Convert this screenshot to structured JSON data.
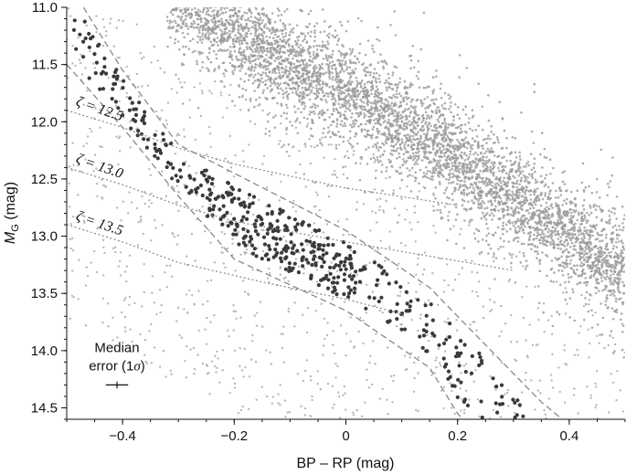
{
  "chart_data": {
    "type": "scatter",
    "title": "",
    "xlabel": "BP – RP (mag)",
    "ylabel_main": "M",
    "ylabel_sub": "G",
    "ylabel_unit": " (mag)",
    "xlim": [
      -0.5,
      0.5
    ],
    "ylim": [
      14.6,
      11.0
    ],
    "y_inverted": true,
    "x_ticks": [
      -0.4,
      -0.2,
      0,
      0.2,
      0.4
    ],
    "x_tick_labels": [
      "−0.4",
      "−0.2",
      "0",
      "0.2",
      "0.4"
    ],
    "y_ticks": [
      11.0,
      11.5,
      12.0,
      12.5,
      13.0,
      13.5,
      14.0,
      14.5
    ],
    "y_tick_labels": [
      "11.0",
      "11.5",
      "12.0",
      "12.5",
      "13.0",
      "13.5",
      "14.0",
      "14.5"
    ],
    "grid": false,
    "colors": {
      "background_stars": "#9a9a9a",
      "selected_stars": "#3a3a3a",
      "lines": "#888888"
    },
    "main_sequence_ridge": {
      "description": "dense band of background stars",
      "points": [
        [
          -0.27,
          11.0
        ],
        [
          -0.1,
          11.5
        ],
        [
          0.1,
          12.0
        ],
        [
          0.25,
          12.5
        ],
        [
          0.4,
          13.0
        ],
        [
          0.5,
          13.3
        ]
      ]
    },
    "selection_boundaries": [
      {
        "name": "upper",
        "points": [
          [
            -0.47,
            11.0
          ],
          [
            -0.4,
            11.55
          ],
          [
            -0.3,
            12.2
          ],
          [
            0.0,
            12.95
          ],
          [
            0.15,
            13.45
          ],
          [
            0.25,
            13.95
          ],
          [
            0.35,
            14.45
          ],
          [
            0.4,
            14.65
          ]
        ]
      },
      {
        "name": "lower",
        "points": [
          [
            -0.5,
            11.5
          ],
          [
            -0.4,
            12.05
          ],
          [
            -0.3,
            12.65
          ],
          [
            -0.2,
            13.2
          ],
          [
            0.0,
            13.65
          ],
          [
            0.15,
            14.15
          ],
          [
            0.2,
            14.55
          ],
          [
            0.22,
            14.65
          ]
        ]
      }
    ],
    "cooling_tracks": [
      {
        "label": "ζ = 12.5",
        "points": [
          [
            -0.5,
            11.9
          ],
          [
            -0.4,
            12.05
          ],
          [
            -0.3,
            12.23
          ],
          [
            -0.2,
            12.37
          ],
          [
            0.0,
            12.58
          ],
          [
            0.2,
            12.73
          ]
        ]
      },
      {
        "label": "ζ = 13.0",
        "points": [
          [
            -0.5,
            12.4
          ],
          [
            -0.4,
            12.55
          ],
          [
            -0.3,
            12.73
          ],
          [
            -0.2,
            12.87
          ],
          [
            0.0,
            13.05
          ],
          [
            0.3,
            13.3
          ]
        ]
      },
      {
        "label": "ζ = 13.5",
        "points": [
          [
            -0.5,
            12.9
          ],
          [
            -0.4,
            13.05
          ],
          [
            -0.3,
            13.23
          ],
          [
            -0.15,
            13.4
          ],
          [
            0.0,
            13.55
          ],
          [
            0.1,
            13.68
          ]
        ]
      }
    ],
    "annotation": {
      "line1": "Median",
      "line2_text": "error (1",
      "line2_sigma": "σ",
      "line2_close": ")",
      "errorbar_center": [
        -0.41,
        14.3
      ],
      "errorbar_xerr": 0.02,
      "errorbar_yerr": 0.03
    }
  }
}
